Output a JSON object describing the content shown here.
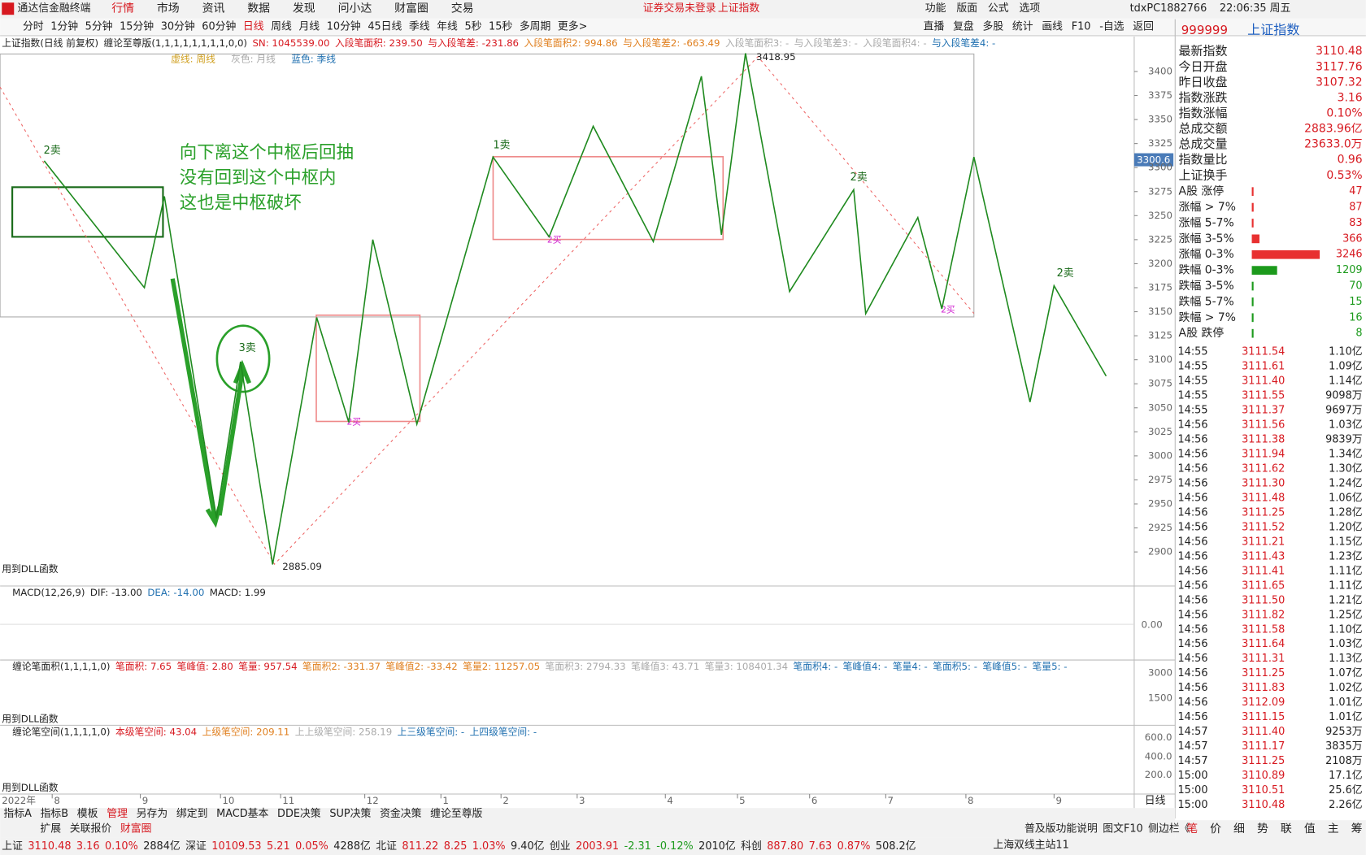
{
  "titlebar": {
    "app": "通达信金融终端",
    "menus": [
      "行情",
      "市场",
      "资讯",
      "数据",
      "发现",
      "问小达",
      "财富圈",
      "交易"
    ],
    "notice": "证券交易未登录",
    "symbol": "上证指数",
    "tools": [
      "功能",
      "版面",
      "公式",
      "选项"
    ],
    "user": "tdxPC1882766",
    "clock": "22:06:35 周五"
  },
  "toolbar": {
    "periods": [
      "分时",
      "1分钟",
      "5分钟",
      "15分钟",
      "30分钟",
      "60分钟",
      "日线",
      "周线",
      "月线",
      "10分钟",
      "45日线",
      "季线",
      "年线",
      "5秒",
      "15秒",
      "多周期",
      "更多>"
    ],
    "tools": [
      "直播",
      "复盘",
      "多股",
      "统计",
      "画线",
      "F10",
      "-自选",
      "返回"
    ]
  },
  "header": {
    "items": [
      "上证指数(日线 前复权)",
      "缠论至尊版(1,1,1,1,1,1,1,1,0,0)",
      "SN: 1045539.00",
      "入段笔面积: 239.50",
      "与入段笔差: -231.86",
      "入段笔面积2: 994.86",
      "与入段笔差2: -663.49",
      "入段笔面积3: -",
      "与入段笔差3: -",
      "入段笔面积4: -",
      "与入段笔差4: -"
    ],
    "legend": [
      "虚线: 周线",
      "灰色: 月线",
      "蓝色: 季线"
    ]
  },
  "chart": {
    "type": "line",
    "color": "#1f8a1f",
    "x": [
      11,
      36,
      41,
      54,
      60,
      68,
      79,
      87,
      93,
      104,
      123,
      137,
      148,
      163,
      175,
      180,
      186,
      197,
      213,
      216,
      229,
      235,
      243,
      257,
      263,
      276
    ],
    "values": [
      3307,
      3175,
      3270,
      2935,
      3098,
      2887,
      3144,
      3035,
      3225,
      3033,
      3311,
      3228,
      3343,
      3223,
      3395,
      3230,
      3418.95,
      3171,
      3277,
      3148,
      3248,
      3153,
      3311,
      3056,
      3177,
      3083
    ],
    "xlim": [
      0,
      283
    ],
    "ylim": [
      2880,
      3430
    ],
    "yticks": [
      2900,
      2925,
      2950,
      2975,
      3000,
      3025,
      3050,
      3075,
      3100,
      3125,
      3150,
      3175,
      3200,
      3225,
      3250,
      3275,
      3300,
      3325,
      3350,
      3375,
      3400
    ],
    "xticks": [
      {
        "value": 13,
        "label": "8"
      },
      {
        "value": 35,
        "label": "9"
      },
      {
        "value": 55,
        "label": "10"
      },
      {
        "value": 70,
        "label": "11"
      },
      {
        "value": 91,
        "label": "12"
      },
      {
        "value": 110,
        "label": "1"
      },
      {
        "value": 125,
        "label": "2"
      },
      {
        "value": 144,
        "label": "3"
      },
      {
        "value": 166,
        "label": "4"
      },
      {
        "value": 184,
        "label": "5"
      },
      {
        "value": 202,
        "label": "6"
      },
      {
        "value": 221,
        "label": "7"
      },
      {
        "value": 241,
        "label": "8"
      },
      {
        "value": 263,
        "label": "9"
      }
    ],
    "year": "2022年",
    "period": "日线",
    "current": "3300.6",
    "high": "3418.95",
    "low": "2885.09",
    "dll": "用到DLL函数",
    "notes": [
      "向下离这个中枢后回抽",
      "没有回到这个中枢内",
      "这也是中枢破坏"
    ],
    "signals": [
      "2卖",
      "3卖",
      "1卖",
      "2买",
      "2买",
      "2卖",
      "2买",
      "2卖"
    ]
  },
  "macd": {
    "items": [
      "MACD(12,26,9)",
      "DIF: -13.00",
      "DEA: -14.00",
      "MACD: 1.99"
    ],
    "tick": "0.00"
  },
  "area": {
    "items": [
      "缠论笔面积(1,1,1,1,0)",
      "笔面积: 7.65",
      "笔峰值: 2.80",
      "笔量: 957.54",
      "笔面积2: -331.37",
      "笔峰值2: -33.42",
      "笔量2: 11257.05",
      "笔面积3: 2794.33",
      "笔峰值3: 43.71",
      "笔量3: 108401.34",
      "笔面积4: -",
      "笔峰值4: -",
      "笔量4: -",
      "笔面积5: -",
      "笔峰值5: -",
      "笔量5: -"
    ],
    "ticks": [
      "3000",
      "1500"
    ],
    "dll": "用到DLL函数"
  },
  "space": {
    "items": [
      "缠论笔空间(1,1,1,1,0)",
      "本级笔空间: 43.04",
      "上级笔空间: 209.11",
      "上上级笔空间: 258.19",
      "上三级笔空间: -",
      "上四级笔空间: -"
    ],
    "ticks": [
      "600.0",
      "400.0",
      "200.0"
    ],
    "dll": "用到DLL函数"
  },
  "bottom_tabs": {
    "row1": [
      "指标A",
      "指标B",
      "模板",
      "管理",
      "另存为",
      "绑定到",
      "MACD基本",
      "DDE决策",
      "SUP决策",
      "资金决策",
      "缠论至尊版"
    ],
    "row2": [
      "扩展",
      "关联报价",
      "财富圈"
    ],
    "right": [
      "普及版功能说明",
      "图文F10",
      "侧边栏《"
    ]
  },
  "quote": {
    "code": "999999",
    "name": "上证指数",
    "rows": [
      [
        "最新指数",
        "3110.48"
      ],
      [
        "今日开盘",
        "3117.76"
      ],
      [
        "昨日收盘",
        "3107.32"
      ],
      [
        "指数涨跌",
        "3.16"
      ],
      [
        "指数涨幅",
        "0.10%"
      ],
      [
        "总成交额",
        "2883.96亿"
      ],
      [
        "总成交量",
        "23633.0万"
      ],
      [
        "指数量比",
        "0.96"
      ],
      [
        "上证换手",
        "0.53%"
      ]
    ],
    "breadth": [
      [
        "A股 涨停",
        47
      ],
      [
        "涨幅 > 7%",
        87
      ],
      [
        "涨幅 5-7%",
        83
      ],
      [
        "涨幅 3-5%",
        366
      ],
      [
        "涨幅 0-3%",
        3246
      ],
      [
        "跌幅 0-3%",
        1209
      ],
      [
        "跌幅 3-5%",
        70
      ],
      [
        "跌幅 5-7%",
        15
      ],
      [
        "跌幅 > 7%",
        16
      ],
      [
        "A股 跌停",
        8
      ]
    ],
    "ticks": [
      [
        "14:55",
        "3111.54",
        "1.10亿"
      ],
      [
        "14:55",
        "3111.61",
        "1.09亿"
      ],
      [
        "14:55",
        "3111.40",
        "1.14亿"
      ],
      [
        "14:55",
        "3111.55",
        "9098万"
      ],
      [
        "14:55",
        "3111.37",
        "9697万"
      ],
      [
        "14:56",
        "3111.56",
        "1.03亿"
      ],
      [
        "14:56",
        "3111.38",
        "9839万"
      ],
      [
        "14:56",
        "3111.94",
        "1.34亿"
      ],
      [
        "14:56",
        "3111.62",
        "1.30亿"
      ],
      [
        "14:56",
        "3111.30",
        "1.24亿"
      ],
      [
        "14:56",
        "3111.48",
        "1.06亿"
      ],
      [
        "14:56",
        "3111.25",
        "1.28亿"
      ],
      [
        "14:56",
        "3111.52",
        "1.20亿"
      ],
      [
        "14:56",
        "3111.21",
        "1.15亿"
      ],
      [
        "14:56",
        "3111.43",
        "1.23亿"
      ],
      [
        "14:56",
        "3111.41",
        "1.11亿"
      ],
      [
        "14:56",
        "3111.65",
        "1.11亿"
      ],
      [
        "14:56",
        "3111.50",
        "1.21亿"
      ],
      [
        "14:56",
        "3111.82",
        "1.25亿"
      ],
      [
        "14:56",
        "3111.58",
        "1.10亿"
      ],
      [
        "14:56",
        "3111.64",
        "1.03亿"
      ],
      [
        "14:56",
        "3111.31",
        "1.13亿"
      ],
      [
        "14:56",
        "3111.25",
        "1.07亿"
      ],
      [
        "14:56",
        "3111.83",
        "1.02亿"
      ],
      [
        "14:56",
        "3112.09",
        "1.01亿"
      ],
      [
        "14:56",
        "3111.15",
        "1.01亿"
      ],
      [
        "14:57",
        "3111.40",
        "9253万"
      ],
      [
        "14:57",
        "3111.17",
        "3835万"
      ],
      [
        "14:57",
        "3111.25",
        "2108万"
      ],
      [
        "15:00",
        "3110.89",
        "17.1亿"
      ],
      [
        "15:00",
        "3110.51",
        "25.6亿"
      ],
      [
        "15:00",
        "3110.48",
        "2.26亿"
      ]
    ],
    "tabs": [
      "笔",
      "价",
      "细",
      "势",
      "联",
      "值",
      "主",
      "筹"
    ]
  },
  "status": {
    "items": [
      "上证",
      "3110.48",
      "3.16",
      "0.10%",
      "2884亿",
      "深证",
      "10109.53",
      "5.21",
      "0.05%",
      "4288亿",
      "北证",
      "811.22",
      "8.25",
      "1.03%",
      "9.40亿",
      "创业",
      "2003.91",
      "-2.31",
      "-0.12%",
      "2010亿",
      "科创",
      "887.80",
      "7.63",
      "0.87%",
      "508.2亿"
    ],
    "server": "上海双线主站11"
  }
}
